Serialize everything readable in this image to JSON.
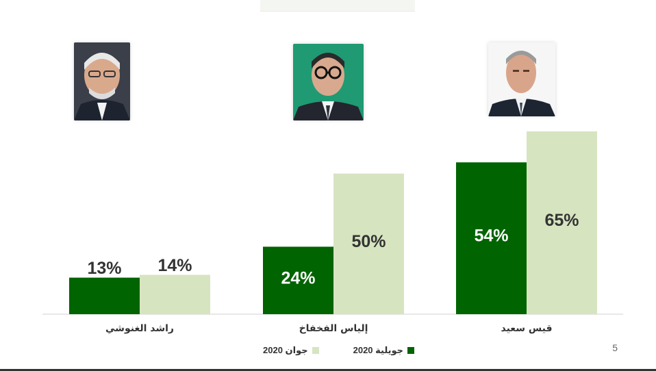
{
  "colors": {
    "july": "#006400",
    "june": "#d6e4c0",
    "baseline": "#d0d0d0",
    "value_on_dark": "#ffffff",
    "value_on_light": "#333333"
  },
  "page_number": "5",
  "chart_data": {
    "type": "bar",
    "categories": [
      "راشد الغنوشي",
      "إلياس الفخفاخ",
      "قيس سعيد"
    ],
    "series": [
      {
        "name": "جويلية 2020",
        "key": "july",
        "values": [
          13,
          24,
          54
        ]
      },
      {
        "name": "جوان 2020",
        "key": "june",
        "values": [
          14,
          50,
          65
        ]
      }
    ],
    "value_labels": {
      "july": [
        "13%",
        "24%",
        "54%"
      ],
      "june": [
        "14%",
        "50%",
        "65%"
      ]
    },
    "ylim": [
      0,
      65
    ],
    "grid": false,
    "legend_position": "bottom",
    "portraits": [
      "portrait-icon",
      "portrait-icon",
      "portrait-icon"
    ]
  }
}
